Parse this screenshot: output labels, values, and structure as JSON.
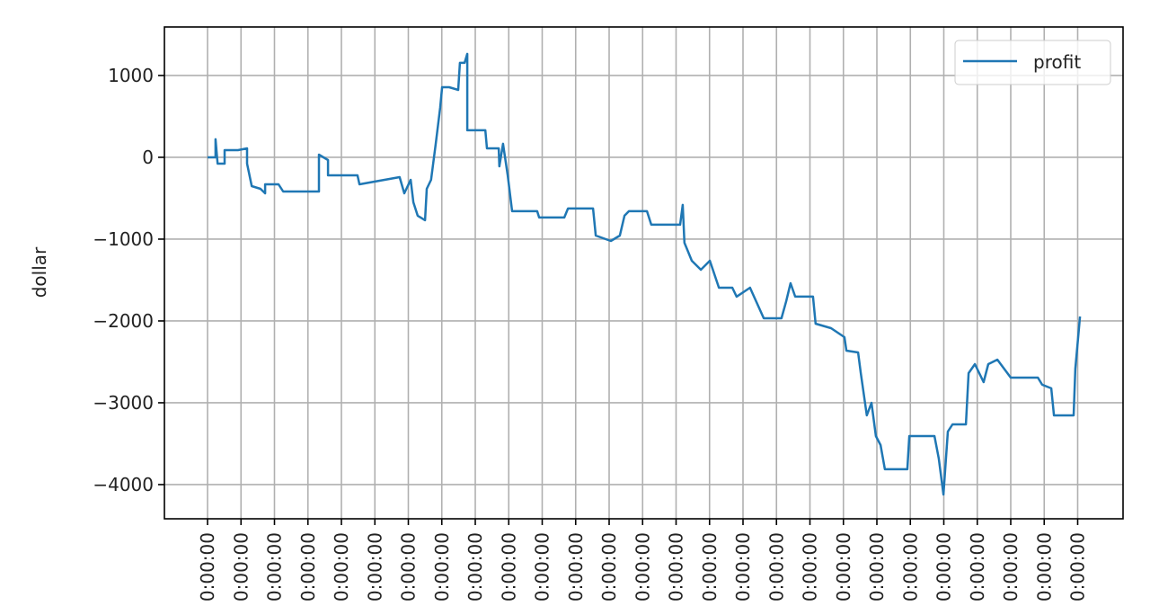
{
  "chart_data": {
    "type": "line",
    "title": "",
    "xlabel": "",
    "ylabel": "dollar",
    "grid": true,
    "legend_position": "top-right",
    "line_color": "#1f77b4",
    "ylim": [
      -4418,
      1593
    ],
    "yticks": [
      1000,
      0,
      -1000,
      -2000,
      -3000,
      -4000
    ],
    "ytick_labels": [
      "1000",
      "0",
      "−1000",
      "−2000",
      "−3000",
      "−4000"
    ],
    "xtick_labels": [
      "00:00:00",
      "00:00:00",
      "00:00:00",
      "00:00:00",
      "00:00:00",
      "00:00:00",
      "00:00:00",
      "00:00:00",
      "00:00:00",
      "00:00:00",
      "00:00:00",
      "00:00:00",
      "00:00:00",
      "00:00:00",
      "00:00:00",
      "00:00:00",
      "00:00:00",
      "00:00:00",
      "00:00:00",
      "00:00:00",
      "00:00:00",
      "00:00:00",
      "00:00:00",
      "00:00:00",
      "00:00:00",
      "00:00:00",
      "00:00:00"
    ],
    "series": [
      {
        "name": "profit",
        "x": [
          0,
          0.24,
          0.24,
          0.3,
          0.51,
          0.51,
          0.91,
          1.18,
          1.18,
          1.32,
          1.58,
          1.72,
          1.72,
          2.12,
          2.26,
          3.33,
          3.33,
          3.6,
          3.6,
          4.48,
          4.54,
          5.74,
          5.88,
          6.07,
          6.15,
          6.28,
          6.5,
          6.55,
          6.68,
          6.82,
          6.95,
          7.01,
          7.22,
          7.49,
          7.54,
          7.68,
          7.76,
          7.76,
          8.3,
          8.35,
          8.7,
          8.72,
          8.83,
          8.97,
          9.1,
          9.85,
          9.91,
          10.66,
          10.77,
          11.52,
          11.6,
          12.05,
          12.32,
          12.46,
          12.59,
          13.13,
          13.26,
          14.12,
          14.2,
          14.25,
          14.47,
          14.74,
          15.01,
          15.28,
          15.68,
          15.81,
          16.21,
          16.62,
          17.15,
          17.29,
          17.42,
          17.56,
          18.09,
          18.17,
          18.63,
          19.03,
          19.09,
          19.44,
          19.52,
          19.7,
          19.84,
          19.97,
          20.11,
          20.24,
          20.91,
          20.97,
          21.72,
          21.85,
          21.99,
          22.12,
          22.26,
          22.66,
          22.74,
          22.93,
          23.19,
          23.33,
          23.6,
          24.0,
          24.81,
          24.94,
          25.21,
          25.29,
          25.88,
          25.93,
          26.07
        ],
        "y": [
          0,
          0,
          220,
          -77,
          -77,
          88,
          88,
          110,
          -77,
          -352,
          -385,
          -440,
          -330,
          -330,
          -418,
          -418,
          33,
          -33,
          -220,
          -220,
          -330,
          -242,
          -440,
          -275,
          -550,
          -714,
          -769,
          -385,
          -275,
          165,
          604,
          857,
          857,
          824,
          1154,
          1154,
          1264,
          330,
          330,
          110,
          110,
          -110,
          165,
          -220,
          -659,
          -659,
          -736,
          -736,
          -626,
          -626,
          -956,
          -1022,
          -956,
          -714,
          -659,
          -659,
          -824,
          -824,
          -582,
          -1044,
          -1264,
          -1374,
          -1264,
          -1594,
          -1594,
          -1703,
          -1594,
          -1967,
          -1967,
          -1758,
          -1539,
          -1703,
          -1703,
          -2033,
          -2088,
          -2198,
          -2363,
          -2385,
          -2638,
          -3154,
          -3000,
          -3407,
          -3517,
          -3813,
          -3813,
          -3407,
          -3407,
          -3682,
          -4121,
          -3352,
          -3264,
          -3264,
          -2638,
          -2528,
          -2748,
          -2528,
          -2473,
          -2693,
          -2693,
          -2780,
          -2824,
          -3154,
          -3154,
          -2583,
          -1945
        ]
      }
    ]
  }
}
